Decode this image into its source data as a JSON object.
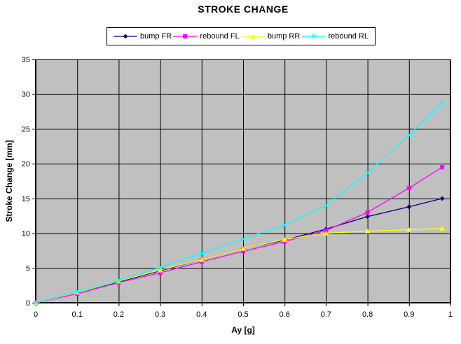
{
  "chart_data": {
    "type": "line",
    "title": "STROKE CHANGE",
    "xlabel": "Ay [g]",
    "ylabel": "Stroke Change [mm]",
    "xlim": [
      0,
      1
    ],
    "ylim": [
      0,
      35
    ],
    "x_tick_values": [
      0,
      0.1,
      0.2,
      0.3,
      0.4,
      0.5,
      0.6,
      0.7,
      0.8,
      0.9,
      1
    ],
    "x_tick_labels": [
      "0",
      "0.1",
      "0.2",
      "0.3",
      "0.4",
      "0.5",
      "0.6",
      "0.7",
      "0.8",
      "0.9",
      "1"
    ],
    "y_tick_values": [
      0,
      5,
      10,
      15,
      20,
      25,
      30,
      35
    ],
    "y_tick_labels": [
      "0",
      "5",
      "10",
      "15",
      "20",
      "25",
      "30",
      "35"
    ],
    "grid": true,
    "grid_color": "#000000",
    "plot_bg_color": "#c0c0c0",
    "axis_color": "#000000",
    "legend_position": "top",
    "x": [
      0,
      0.1,
      0.2,
      0.3,
      0.4,
      0.5,
      0.6,
      0.7,
      0.8,
      0.9,
      0.98
    ],
    "series": [
      {
        "name": "bump FR",
        "color": "#000080",
        "marker": "diamond",
        "values": [
          0,
          1.5,
          3.0,
          4.6,
          6.2,
          7.8,
          9.0,
          10.6,
          12.4,
          13.8,
          15.0
        ]
      },
      {
        "name": "rebound FL",
        "color": "#ff00ff",
        "marker": "square",
        "values": [
          0,
          1.3,
          2.9,
          4.3,
          5.9,
          7.4,
          8.8,
          10.4,
          13.0,
          16.5,
          19.5
        ]
      },
      {
        "name": "bump RR",
        "color": "#ffff00",
        "marker": "triangle",
        "values": [
          0,
          1.5,
          3.1,
          4.7,
          6.2,
          7.8,
          9.1,
          10.0,
          10.3,
          10.5,
          10.7
        ]
      },
      {
        "name": "rebound RL",
        "color": "#00ffff",
        "marker": "x",
        "values": [
          0,
          1.6,
          3.2,
          5.1,
          7.1,
          9.2,
          11.2,
          14.0,
          18.7,
          24.1,
          28.7
        ]
      }
    ]
  }
}
